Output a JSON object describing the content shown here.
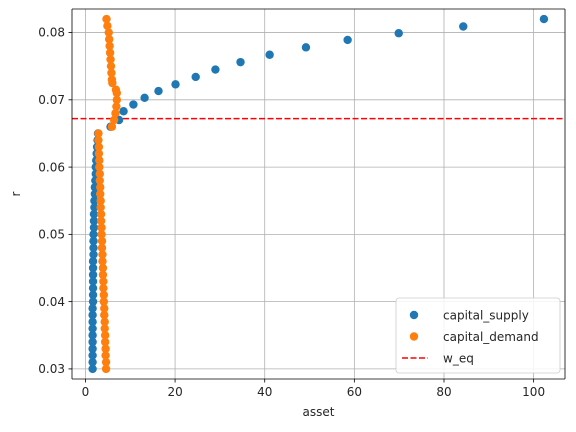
{
  "chart_data": {
    "type": "scatter",
    "xlabel": "asset",
    "ylabel": "r",
    "xlim": [
      -3,
      107
    ],
    "ylim": [
      0.0285,
      0.0835
    ],
    "xticks": [
      0,
      20,
      40,
      60,
      80,
      100
    ],
    "yticks": [
      0.03,
      0.04,
      0.05,
      0.06,
      0.07,
      0.08
    ],
    "xtick_labels": [
      "0",
      "20",
      "40",
      "60",
      "80",
      "100"
    ],
    "ytick_labels": [
      "0.03",
      "0.04",
      "0.05",
      "0.06",
      "0.07",
      "0.08"
    ],
    "grid": true,
    "legend_position": "lower-right",
    "series": [
      {
        "name": "capital_supply",
        "color": "#1f77b4",
        "marker": "circle",
        "points": [
          [
            1.6,
            0.03
          ],
          [
            1.6,
            0.031
          ],
          [
            1.6,
            0.032
          ],
          [
            1.6,
            0.033
          ],
          [
            1.6,
            0.034
          ],
          [
            1.6,
            0.035
          ],
          [
            1.6,
            0.036
          ],
          [
            1.6,
            0.037
          ],
          [
            1.6,
            0.038
          ],
          [
            1.6,
            0.039
          ],
          [
            1.7,
            0.04
          ],
          [
            1.7,
            0.041
          ],
          [
            1.7,
            0.042
          ],
          [
            1.7,
            0.043
          ],
          [
            1.7,
            0.044
          ],
          [
            1.7,
            0.045
          ],
          [
            1.7,
            0.046
          ],
          [
            1.8,
            0.047
          ],
          [
            1.8,
            0.048
          ],
          [
            1.8,
            0.049
          ],
          [
            1.8,
            0.05
          ],
          [
            1.9,
            0.051
          ],
          [
            1.9,
            0.052
          ],
          [
            1.9,
            0.053
          ],
          [
            2.0,
            0.054
          ],
          [
            2.0,
            0.055
          ],
          [
            2.1,
            0.056
          ],
          [
            2.1,
            0.057
          ],
          [
            2.2,
            0.058
          ],
          [
            2.3,
            0.059
          ],
          [
            2.3,
            0.06
          ],
          [
            2.4,
            0.061
          ],
          [
            2.5,
            0.062
          ],
          [
            2.6,
            0.063
          ],
          [
            2.7,
            0.064
          ],
          [
            2.8,
            0.065
          ],
          [
            5.6,
            0.066
          ],
          [
            7.5,
            0.067
          ],
          [
            8.5,
            0.0683
          ],
          [
            10.7,
            0.0693
          ],
          [
            13.2,
            0.0703
          ],
          [
            16.3,
            0.0713
          ],
          [
            20.1,
            0.0723
          ],
          [
            24.6,
            0.0734
          ],
          [
            29.0,
            0.0745
          ],
          [
            34.6,
            0.0756
          ],
          [
            41.1,
            0.0767
          ],
          [
            49.2,
            0.0778
          ],
          [
            58.5,
            0.0789
          ],
          [
            69.9,
            0.0799
          ],
          [
            84.3,
            0.0809
          ],
          [
            102.3,
            0.082
          ]
        ]
      },
      {
        "name": "capital_demand",
        "color": "#ff7f0e",
        "marker": "circle",
        "points": [
          [
            4.6,
            0.03
          ],
          [
            4.6,
            0.031
          ],
          [
            4.5,
            0.032
          ],
          [
            4.5,
            0.033
          ],
          [
            4.4,
            0.034
          ],
          [
            4.4,
            0.035
          ],
          [
            4.3,
            0.036
          ],
          [
            4.3,
            0.037
          ],
          [
            4.2,
            0.038
          ],
          [
            4.2,
            0.039
          ],
          [
            4.1,
            0.04
          ],
          [
            4.1,
            0.041
          ],
          [
            4.0,
            0.042
          ],
          [
            4.0,
            0.043
          ],
          [
            3.9,
            0.044
          ],
          [
            3.9,
            0.045
          ],
          [
            3.8,
            0.046
          ],
          [
            3.8,
            0.047
          ],
          [
            3.7,
            0.048
          ],
          [
            3.7,
            0.049
          ],
          [
            3.6,
            0.05
          ],
          [
            3.6,
            0.051
          ],
          [
            3.5,
            0.052
          ],
          [
            3.5,
            0.053
          ],
          [
            3.4,
            0.054
          ],
          [
            3.4,
            0.055
          ],
          [
            3.3,
            0.056
          ],
          [
            3.3,
            0.057
          ],
          [
            3.2,
            0.058
          ],
          [
            3.2,
            0.059
          ],
          [
            3.1,
            0.06
          ],
          [
            3.1,
            0.061
          ],
          [
            3.0,
            0.062
          ],
          [
            3.0,
            0.063
          ],
          [
            2.9,
            0.064
          ],
          [
            2.9,
            0.065
          ],
          [
            5.9,
            0.066
          ],
          [
            6.4,
            0.067
          ],
          [
            6.7,
            0.068
          ],
          [
            6.9,
            0.069
          ],
          [
            7.0,
            0.07
          ],
          [
            7.0,
            0.071
          ],
          [
            6.8,
            0.0715
          ],
          [
            6.0,
            0.0725
          ],
          [
            5.9,
            0.073
          ],
          [
            5.8,
            0.074
          ],
          [
            5.7,
            0.075
          ],
          [
            5.6,
            0.076
          ],
          [
            5.5,
            0.077
          ],
          [
            5.4,
            0.078
          ],
          [
            5.3,
            0.079
          ],
          [
            5.2,
            0.08
          ],
          [
            4.9,
            0.081
          ],
          [
            4.7,
            0.082
          ]
        ]
      }
    ],
    "reference_lines": [
      {
        "name": "w_eq",
        "orientation": "horizontal",
        "y": 0.0672,
        "color": "#ff0000",
        "style": "dashed"
      }
    ]
  }
}
